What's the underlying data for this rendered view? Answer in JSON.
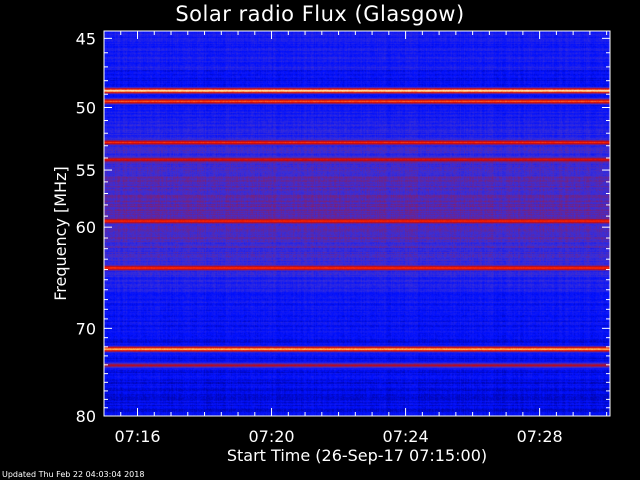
{
  "chart_data": {
    "type": "heatmap",
    "title": "Solar radio Flux (Glasgow)",
    "xlabel": "Start Time (26-Sep-17 07:15:00)",
    "ylabel": "Frequency [MHz]",
    "x_ticks": [
      "07:16",
      "07:20",
      "07:24",
      "07:28"
    ],
    "x_tick_minutes": [
      16,
      20,
      24,
      28
    ],
    "x_range_minutes": [
      15.0,
      30.1
    ],
    "y_ticks": [
      45,
      50,
      55,
      60,
      70,
      80
    ],
    "y_scale": "log",
    "ylim_mhz": [
      44.5,
      80.0
    ],
    "colormap": [
      "#00008c",
      "#0010ff",
      "#3a2fd8",
      "#8a1d60",
      "#d00000",
      "#ff2a00",
      "#ffcf6a",
      "#ffffff"
    ],
    "persistent_bands": [
      {
        "freq_mhz": 48.7,
        "intensity": 1.0
      },
      {
        "freq_mhz": 49.5,
        "intensity": 0.78
      },
      {
        "freq_mhz": 52.7,
        "intensity": 0.72
      },
      {
        "freq_mhz": 54.1,
        "intensity": 0.66
      },
      {
        "freq_mhz": 59.4,
        "intensity": 0.76
      },
      {
        "freq_mhz": 63.8,
        "intensity": 0.78
      },
      {
        "freq_mhz": 72.2,
        "intensity": 0.92
      },
      {
        "freq_mhz": 74.0,
        "intensity": 0.55
      }
    ]
  },
  "footer": {
    "updated": "Updated Thu Feb 22 04:03:04 2018"
  }
}
